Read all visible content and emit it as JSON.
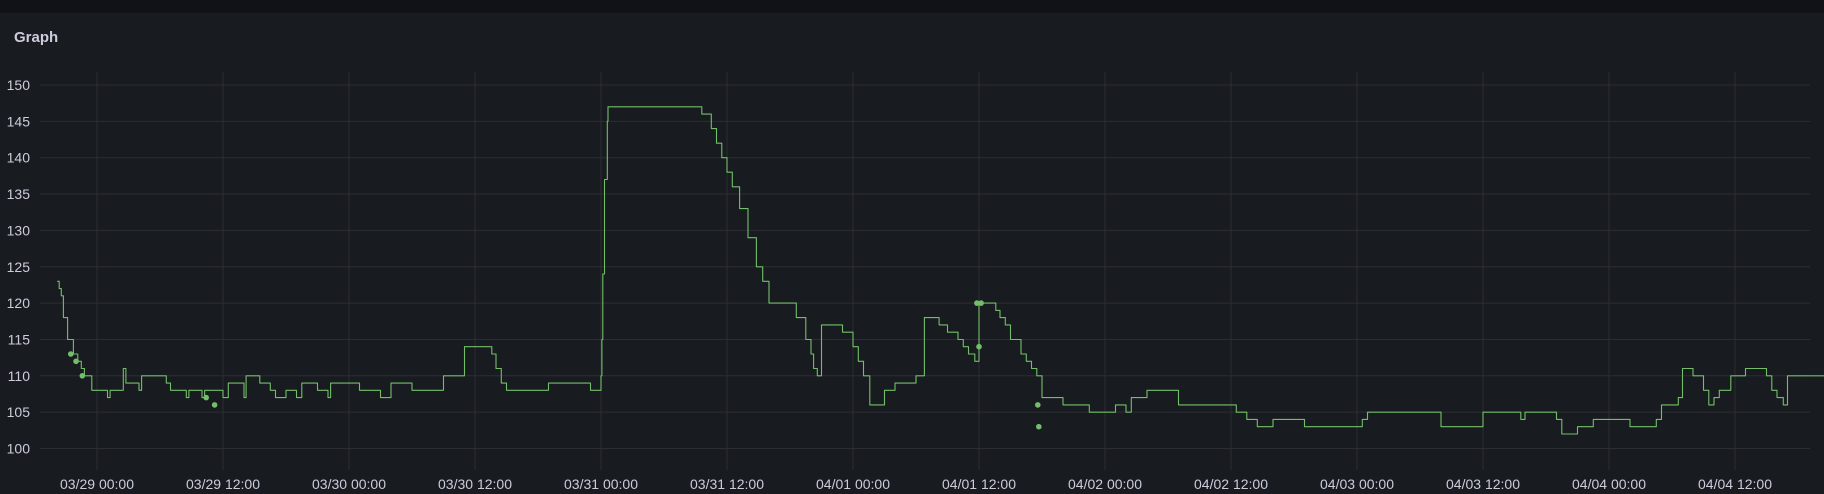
{
  "panel": {
    "title": "Graph"
  },
  "colors": {
    "series": "#73bf69",
    "grid": "#2c2e33",
    "background": "#181b1f"
  },
  "chart_data": {
    "type": "line",
    "title": "Graph",
    "xlabel": "",
    "ylabel": "",
    "xlim": [
      "03/28 20:12",
      "04/04 23:36"
    ],
    "ylim": [
      96,
      152
    ],
    "grid": true,
    "legend": "none",
    "yticks": [
      100,
      105,
      110,
      115,
      120,
      125,
      130,
      135,
      140,
      145,
      150
    ],
    "xticks": [
      "03/29 00:00",
      "03/29 12:00",
      "03/30 00:00",
      "03/30 12:00",
      "03/31 00:00",
      "03/31 12:00",
      "04/01 00:00",
      "04/01 12:00",
      "04/02 00:00",
      "04/02 12:00",
      "04/03 00:00",
      "04/03 12:00",
      "04/04 00:00",
      "04/04 12:00"
    ],
    "series": [
      {
        "type": "step",
        "points": [
          [
            "03/28 20:12",
            123
          ],
          [
            "03/28 20:24",
            122
          ],
          [
            "03/28 20:36",
            121
          ],
          [
            "03/28 20:48",
            118
          ],
          [
            "03/28 21:12",
            115
          ],
          [
            "03/28 21:45",
            113
          ],
          [
            "03/28 22:10",
            112
          ],
          [
            "03/28 22:30",
            111
          ],
          [
            "03/28 22:48",
            110
          ],
          [
            "03/28 23:30",
            108
          ],
          [
            "03/29 01:00",
            107
          ],
          [
            "03/29 01:15",
            108
          ],
          [
            "03/29 02:30",
            111
          ],
          [
            "03/29 02:45",
            109
          ],
          [
            "03/29 04:00",
            108
          ],
          [
            "03/29 04:15",
            110
          ],
          [
            "03/29 06:36",
            109
          ],
          [
            "03/29 07:00",
            108
          ],
          [
            "03/29 08:30",
            107
          ],
          [
            "03/29 08:45",
            108
          ],
          [
            "03/29 10:00",
            107
          ],
          [
            "03/29 10:15",
            108
          ],
          [
            "03/29 12:00",
            107
          ],
          [
            "03/29 12:30",
            109
          ],
          [
            "03/29 14:00",
            107
          ],
          [
            "03/29 14:12",
            110
          ],
          [
            "03/29 15:30",
            109
          ],
          [
            "03/29 16:30",
            108
          ],
          [
            "03/29 17:00",
            107
          ],
          [
            "03/29 18:00",
            108
          ],
          [
            "03/29 19:00",
            107
          ],
          [
            "03/29 19:30",
            109
          ],
          [
            "03/29 21:00",
            108
          ],
          [
            "03/29 22:00",
            107
          ],
          [
            "03/29 22:15",
            109
          ],
          [
            "03/30 01:00",
            108
          ],
          [
            "03/30 03:00",
            107
          ],
          [
            "03/30 04:00",
            109
          ],
          [
            "03/30 06:00",
            108
          ],
          [
            "03/30 09:00",
            110
          ],
          [
            "03/30 11:00",
            114
          ],
          [
            "03/30 13:36",
            113
          ],
          [
            "03/30 14:00",
            111
          ],
          [
            "03/30 14:30",
            109
          ],
          [
            "03/30 15:00",
            108
          ],
          [
            "03/30 19:00",
            109
          ],
          [
            "03/30 23:00",
            108
          ],
          [
            "03/31 00:00",
            110
          ],
          [
            "03/31 00:05",
            115
          ],
          [
            "03/31 00:10",
            124
          ],
          [
            "03/31 00:20",
            137
          ],
          [
            "03/31 00:36",
            145
          ],
          [
            "03/31 00:40",
            147
          ],
          [
            "03/31 09:36",
            146
          ],
          [
            "03/31 10:30",
            144
          ],
          [
            "03/31 11:00",
            142
          ],
          [
            "03/31 11:30",
            140
          ],
          [
            "03/31 12:00",
            138
          ],
          [
            "03/31 12:30",
            136
          ],
          [
            "03/31 13:12",
            133
          ],
          [
            "03/31 14:00",
            129
          ],
          [
            "03/31 14:48",
            125
          ],
          [
            "03/31 15:24",
            123
          ],
          [
            "03/31 16:00",
            120
          ],
          [
            "03/31 18:36",
            118
          ],
          [
            "03/31 19:30",
            115
          ],
          [
            "03/31 20:00",
            113
          ],
          [
            "03/31 20:15",
            111
          ],
          [
            "03/31 20:36",
            110
          ],
          [
            "03/31 21:00",
            117
          ],
          [
            "03/31 23:00",
            116
          ],
          [
            "04/01 00:00",
            114
          ],
          [
            "04/01 00:30",
            112
          ],
          [
            "04/01 01:00",
            110
          ],
          [
            "04/01 01:36",
            106
          ],
          [
            "04/01 03:00",
            108
          ],
          [
            "04/01 04:00",
            109
          ],
          [
            "04/01 06:00",
            110
          ],
          [
            "04/01 06:48",
            118
          ],
          [
            "04/01 08:12",
            117
          ],
          [
            "04/01 09:00",
            116
          ],
          [
            "04/01 10:00",
            115
          ],
          [
            "04/01 10:30",
            114
          ],
          [
            "04/01 11:00",
            113
          ],
          [
            "04/01 11:36",
            112
          ],
          [
            "04/01 12:00",
            120
          ],
          [
            "04/01 13:36",
            119
          ],
          [
            "04/01 14:00",
            118
          ],
          [
            "04/01 14:30",
            117
          ],
          [
            "04/01 15:00",
            115
          ],
          [
            "04/01 16:00",
            113
          ],
          [
            "04/01 16:30",
            112
          ],
          [
            "04/01 17:00",
            111
          ],
          [
            "04/01 17:30",
            110
          ],
          [
            "04/01 18:00",
            107
          ],
          [
            "04/01 20:00",
            106
          ],
          [
            "04/01 22:30",
            105
          ],
          [
            "04/02 01:00",
            106
          ],
          [
            "04/02 02:00",
            105
          ],
          [
            "04/02 02:30",
            107
          ],
          [
            "04/02 04:00",
            108
          ],
          [
            "04/02 07:00",
            106
          ],
          [
            "04/02 12:30",
            105
          ],
          [
            "04/02 13:30",
            104
          ],
          [
            "04/02 14:30",
            103
          ],
          [
            "04/02 16:00",
            104
          ],
          [
            "04/02 19:00",
            103
          ],
          [
            "04/03 00:30",
            104
          ],
          [
            "04/03 01:00",
            105
          ],
          [
            "04/03 08:00",
            103
          ],
          [
            "04/03 12:00",
            105
          ],
          [
            "04/03 15:36",
            104
          ],
          [
            "04/03 16:00",
            105
          ],
          [
            "04/03 19:00",
            104
          ],
          [
            "04/03 19:30",
            102
          ],
          [
            "04/03 21:00",
            103
          ],
          [
            "04/03 22:30",
            104
          ],
          [
            "04/04 02:00",
            103
          ],
          [
            "04/04 04:30",
            104
          ],
          [
            "04/04 05:00",
            106
          ],
          [
            "04/04 06:36",
            107
          ],
          [
            "04/04 07:00",
            111
          ],
          [
            "04/04 08:00",
            110
          ],
          [
            "04/04 09:00",
            108
          ],
          [
            "04/04 09:30",
            106
          ],
          [
            "04/04 10:00",
            107
          ],
          [
            "04/04 10:30",
            108
          ],
          [
            "04/04 11:36",
            110
          ],
          [
            "04/04 13:00",
            111
          ],
          [
            "04/04 15:00",
            110
          ],
          [
            "04/04 15:30",
            108
          ],
          [
            "04/04 16:00",
            107
          ],
          [
            "04/04 16:36",
            106
          ],
          [
            "04/04 17:00",
            110
          ],
          [
            "04/04 21:36",
            111
          ],
          [
            "04/04 23:24",
            110
          ],
          [
            "04/04 23:36",
            109
          ]
        ]
      },
      {
        "type": "points",
        "points": [
          [
            "03/28 21:30",
            113
          ],
          [
            "03/28 22:00",
            112
          ],
          [
            "03/28 22:36",
            110
          ],
          [
            "03/29 10:24",
            107
          ],
          [
            "03/29 11:12",
            106
          ],
          [
            "04/01 11:48",
            120
          ],
          [
            "04/01 12:12",
            120
          ],
          [
            "04/01 12:00",
            114
          ],
          [
            "04/01 17:36",
            106
          ],
          [
            "04/01 17:42",
            103
          ]
        ]
      }
    ]
  }
}
